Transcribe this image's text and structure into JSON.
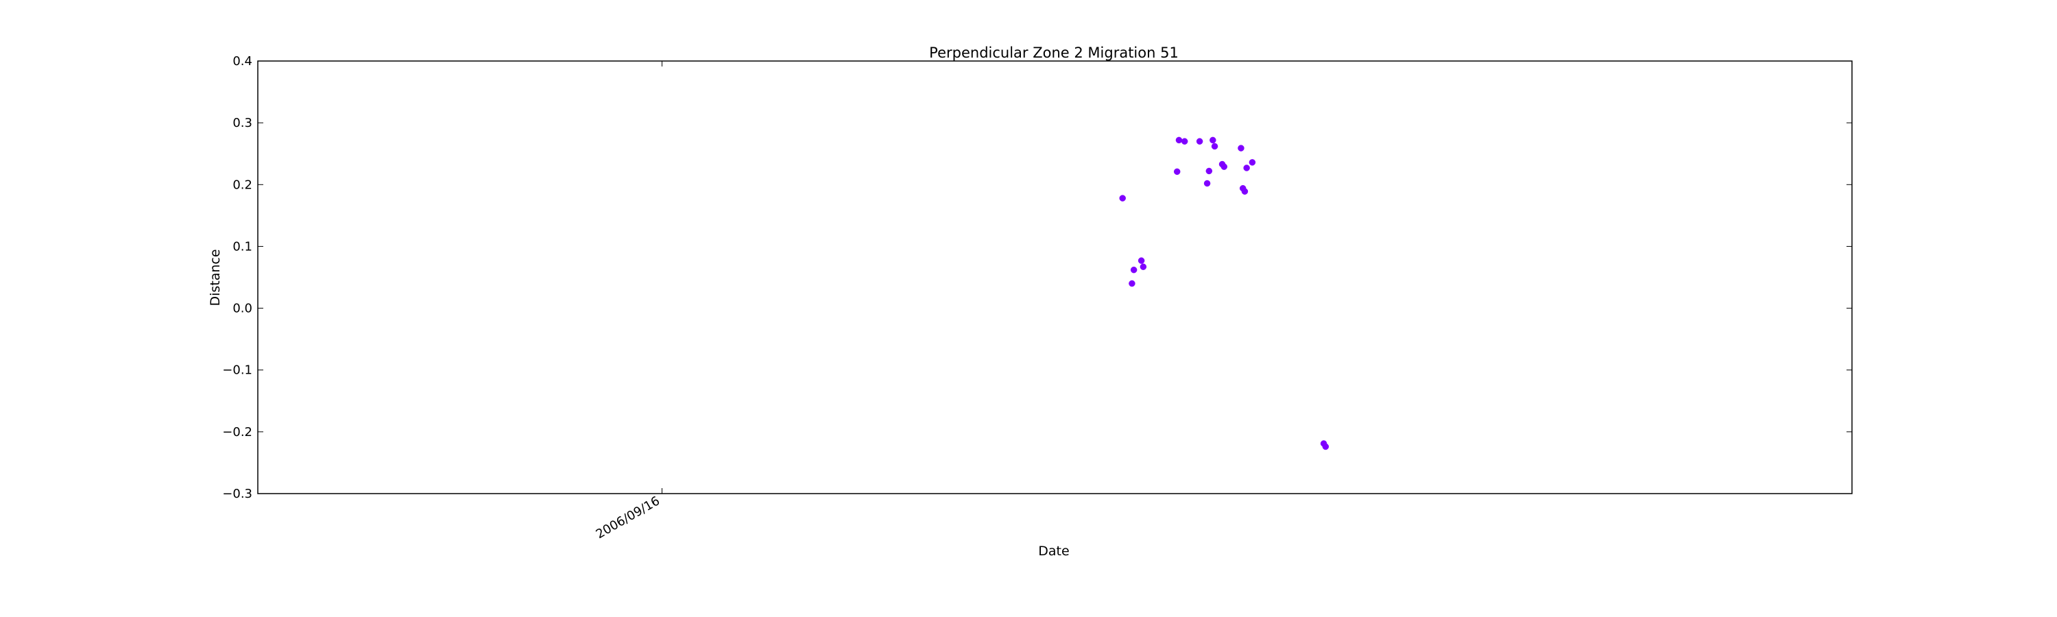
{
  "chart_data": {
    "type": "scatter",
    "title": "Perpendicular Zone 2 Migration 51",
    "xlabel": "Date",
    "ylabel": "Distance",
    "ylim": [
      -0.3,
      0.4
    ],
    "yticks": [
      0.4,
      0.3,
      0.2,
      0.1,
      0.0,
      -0.1,
      -0.2,
      -0.3
    ],
    "ytick_labels": [
      "0.4",
      "0.3",
      "0.2",
      "0.1",
      "0.0",
      "−0.1",
      "−0.2",
      "−0.3"
    ],
    "xlim": [
      "2006/02/13",
      "2008/06/10"
    ],
    "xticks": [
      "2006/09/16"
    ],
    "xtick_labels": [
      "2006/09/16"
    ],
    "grid": false,
    "marker_color": "#7f00ff",
    "series": [
      {
        "points": [
          {
            "x": "2007/05/19",
            "y": 0.178
          },
          {
            "x": "2007/05/24",
            "y": 0.04
          },
          {
            "x": "2007/05/25",
            "y": 0.062
          },
          {
            "x": "2007/05/29",
            "y": 0.077
          },
          {
            "x": "2007/05/30",
            "y": 0.067
          },
          {
            "x": "2007/06/17",
            "y": 0.221
          },
          {
            "x": "2007/06/18",
            "y": 0.272
          },
          {
            "x": "2007/06/21",
            "y": 0.27
          },
          {
            "x": "2007/06/29",
            "y": 0.27
          },
          {
            "x": "2007/07/03",
            "y": 0.202
          },
          {
            "x": "2007/07/04",
            "y": 0.222
          },
          {
            "x": "2007/07/06",
            "y": 0.272
          },
          {
            "x": "2007/07/07",
            "y": 0.262
          },
          {
            "x": "2007/07/11",
            "y": 0.233
          },
          {
            "x": "2007/07/12",
            "y": 0.229
          },
          {
            "x": "2007/07/21",
            "y": 0.259
          },
          {
            "x": "2007/07/22",
            "y": 0.194
          },
          {
            "x": "2007/07/23",
            "y": 0.189
          },
          {
            "x": "2007/07/24",
            "y": 0.227
          },
          {
            "x": "2007/07/27",
            "y": 0.236
          },
          {
            "x": "2007/09/03",
            "y": -0.219
          },
          {
            "x": "2007/09/04",
            "y": -0.224
          }
        ]
      }
    ]
  }
}
